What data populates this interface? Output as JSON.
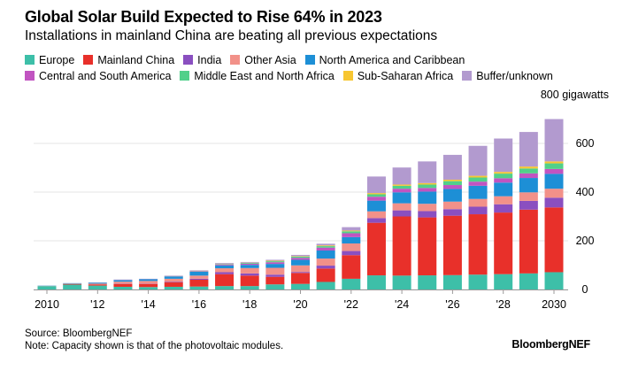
{
  "chart_data": {
    "type": "bar",
    "stacked": true,
    "title": "Global Solar Build Expected to Rise 64% in 2023",
    "subtitle": "Installations in mainland China are beating all previous expectations",
    "yunit_label": "800 gigawatts",
    "ylim": [
      0,
      800
    ],
    "yticks": [
      "0",
      "200",
      "400",
      "600"
    ],
    "xtick_labels": [
      "2010",
      "'12",
      "'14",
      "'16",
      "'18",
      "'20",
      "'22",
      "'24",
      "'26",
      "'28",
      "2030"
    ],
    "categories": [
      "2010",
      "2011",
      "2012",
      "2013",
      "2014",
      "2015",
      "2016",
      "2017",
      "2018",
      "2019",
      "2020",
      "2021",
      "2022",
      "2023",
      "2024",
      "2025",
      "2026",
      "2027",
      "2028",
      "2029",
      "2030"
    ],
    "series": [
      {
        "name": "Europe",
        "color": "#3dbfa8",
        "values": [
          14,
          20,
          16,
          11,
          10,
          11,
          12,
          14,
          14,
          21,
          23,
          31,
          44,
          58,
          57,
          58,
          59,
          61,
          63,
          66,
          71
        ]
      },
      {
        "name": "Mainland China",
        "color": "#e8302a",
        "values": [
          0,
          2,
          4,
          12,
          13,
          18,
          28,
          49,
          43,
          31,
          45,
          55,
          97,
          216,
          243,
          238,
          244,
          248,
          253,
          262,
          266
        ]
      },
      {
        "name": "India",
        "color": "#8a4fc0",
        "values": [
          0,
          0,
          0,
          1,
          1,
          2,
          4,
          8,
          9,
          9,
          4,
          12,
          17,
          19,
          25,
          26,
          27,
          31,
          34,
          36,
          40
        ]
      },
      {
        "name": "Other Asia",
        "color": "#f29189",
        "values": [
          1,
          2,
          4,
          8,
          11,
          13,
          13,
          16,
          22,
          28,
          27,
          29,
          31,
          28,
          29,
          30,
          31,
          32,
          33,
          35,
          37
        ]
      },
      {
        "name": "North America and Caribbean",
        "color": "#1d8fd6",
        "values": [
          1,
          2,
          4,
          6,
          7,
          9,
          16,
          12,
          13,
          16,
          23,
          33,
          26,
          44,
          45,
          50,
          52,
          54,
          56,
          59,
          61
        ]
      },
      {
        "name": "Central and South America",
        "color": "#c154c1",
        "values": [
          0,
          0,
          0,
          0,
          0,
          1,
          2,
          4,
          5,
          7,
          8,
          12,
          16,
          16,
          15,
          15,
          16,
          17,
          18,
          19,
          20
        ]
      },
      {
        "name": "Middle East and North Africa",
        "color": "#51d08a",
        "values": [
          0,
          0,
          0,
          0,
          0,
          1,
          1,
          2,
          3,
          4,
          5,
          6,
          8,
          10,
          12,
          14,
          16,
          17,
          19,
          20,
          23
        ]
      },
      {
        "name": "Sub-Saharan Africa",
        "color": "#f7c631",
        "values": [
          0,
          0,
          0,
          0,
          0,
          0,
          1,
          1,
          1,
          2,
          2,
          3,
          3,
          5,
          5,
          6,
          6,
          7,
          7,
          8,
          8
        ]
      },
      {
        "name": "Buffer/unknown",
        "color": "#b29acf",
        "values": [
          0,
          0,
          1,
          3,
          2,
          2,
          2,
          3,
          3,
          4,
          5,
          7,
          14,
          68,
          70,
          89,
          102,
          123,
          137,
          142,
          174
        ]
      }
    ]
  },
  "footer": {
    "source": "Source: BloombergNEF",
    "note": "Note: Capacity shown is that of the photovoltaic modules.",
    "brand": "BloombergNEF"
  }
}
